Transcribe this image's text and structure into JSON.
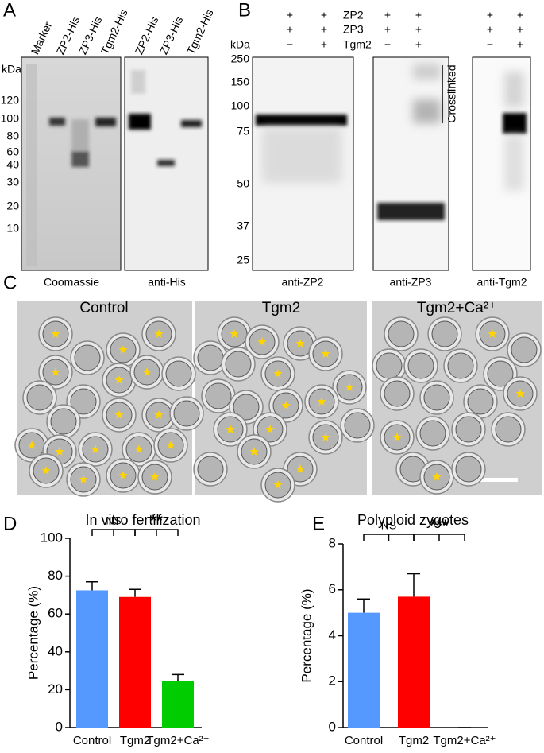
{
  "panels": {
    "A": {
      "label": "A",
      "lanes": [
        "Marker",
        "ZP2-His",
        "ZP3-His",
        "Tgm2-His",
        "ZP2-His",
        "ZP3-His",
        "Tgm2-His"
      ],
      "unit": "kDa",
      "markers": [
        120,
        100,
        80,
        60,
        40,
        30,
        20,
        10
      ],
      "blots": [
        "Coomassie",
        "anti-His"
      ]
    },
    "B": {
      "label": "B",
      "rows": [
        "ZP2",
        "ZP3",
        "Tgm2"
      ],
      "signs": [
        [
          "+",
          "+",
          "−"
        ],
        [
          "+",
          "+",
          "+"
        ],
        [
          "+",
          "+",
          "−"
        ],
        [
          "+",
          "+",
          "+"
        ],
        [
          "+",
          "+",
          "−"
        ],
        [
          "+",
          "+",
          "+"
        ]
      ],
      "unit": "kDa",
      "markers": [
        250,
        150,
        100,
        75,
        50,
        37,
        25
      ],
      "bracket": "Crosslinked",
      "blots": [
        "anti-ZP2",
        "anti-ZP3",
        "anti-Tgm2"
      ]
    },
    "C": {
      "label": "C",
      "groups": [
        "Control",
        "Tgm2",
        "Tgm2+Ca²⁺"
      ]
    },
    "D": {
      "label": "D"
    },
    "E": {
      "label": "E"
    }
  },
  "chart_data": [
    {
      "type": "bar",
      "title": "In vitro fertilization",
      "y_label": "Percentage (%)",
      "categories": [
        "Control",
        "Tgm2",
        "Tgm2+Ca²⁺"
      ],
      "values": [
        72.5,
        69,
        24.5
      ],
      "errors": [
        4.5,
        4,
        3.5
      ],
      "colors": [
        "#5599ff",
        "#ff0000",
        "#00cc00"
      ],
      "ylim": [
        0,
        100
      ],
      "yticks": [
        0,
        20,
        40,
        60,
        80,
        100
      ],
      "annotations": [
        "NS",
        "**"
      ]
    },
    {
      "type": "bar",
      "title": "Polyploid zygotes",
      "y_label": "Percentage (%)",
      "categories": [
        "Control",
        "Tgm2",
        "Tgm2+Ca²⁺"
      ],
      "values": [
        5.0,
        5.7,
        0
      ],
      "errors": [
        0.6,
        1.0,
        0
      ],
      "colors": [
        "#5599ff",
        "#ff0000",
        "#00cc00"
      ],
      "ylim": [
        0,
        8
      ],
      "yticks": [
        0,
        2,
        4,
        6,
        8
      ],
      "annotations": [
        "NS",
        "***"
      ]
    }
  ]
}
